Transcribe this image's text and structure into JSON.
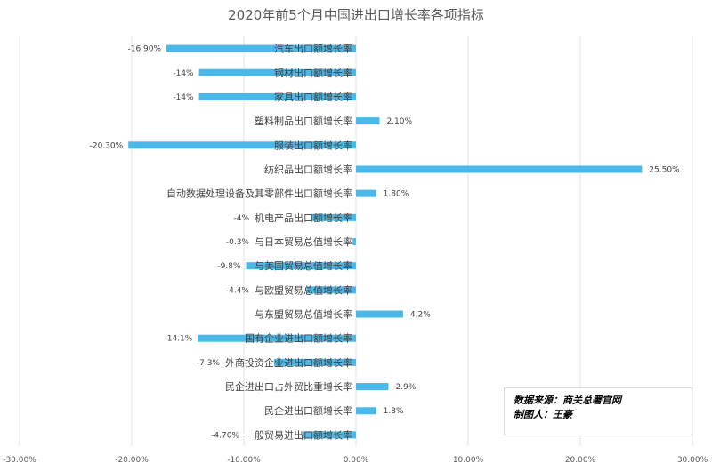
{
  "chart_data": {
    "type": "bar",
    "orientation": "horizontal",
    "title": "2020年前5个月中国进出口增长率各项指标",
    "categories": [
      "汽车出口额增长率",
      "钢材出口额增长率",
      "家具出口额增长率",
      "塑料制品出口额增长率",
      "服装出口额增长率",
      "纺织品出口额增长率",
      "自动数据处理设备及其零部件出口额增长率",
      "机电产品出口额增长率",
      "与日本贸易总值增长率",
      "与美国贸易总值增长率",
      "与欧盟贸易总值增长率",
      "与东盟贸易总值增长率",
      "国有企业进出口额增长率",
      "外商投资企业进出口额增长率",
      "民企进出口占外贸比重增长率",
      "民企进出口额增长率",
      "一般贸易进出口额增长率"
    ],
    "values": [
      -16.9,
      -14,
      -14,
      2.1,
      -20.3,
      25.5,
      1.8,
      -4,
      -0.3,
      -9.8,
      -4.4,
      4.2,
      -14.1,
      -7.3,
      2.9,
      1.8,
      -4.7
    ],
    "value_labels": [
      "-16.90%",
      "-14%",
      "-14%",
      "2.10%",
      "-20.30%",
      "25.50%",
      "1.80%",
      "-4%",
      "-0.3%",
      "-9.8%",
      "-4.4%",
      "4.2%",
      "-14.1%",
      "-7.3%",
      "2.9%",
      "1.8%",
      "-4.70%"
    ],
    "xlim": [
      -30,
      30
    ],
    "x_ticks": [
      -30,
      -20,
      -10,
      0,
      10,
      20,
      30
    ],
    "x_tick_labels": [
      "-30.00%",
      "-20.00%",
      "-10.00%",
      "0.00%",
      "10.00%",
      "20.00%",
      "30.00%"
    ],
    "xlabel": "",
    "ylabel": "",
    "grid": "vertical",
    "legend": "none",
    "bar_color": "#4ab8e8",
    "grid_color": "#e3e3e3"
  },
  "annotation": {
    "source_line": "数据来源：商关总署官网",
    "author_line": "制图人：王豪"
  }
}
